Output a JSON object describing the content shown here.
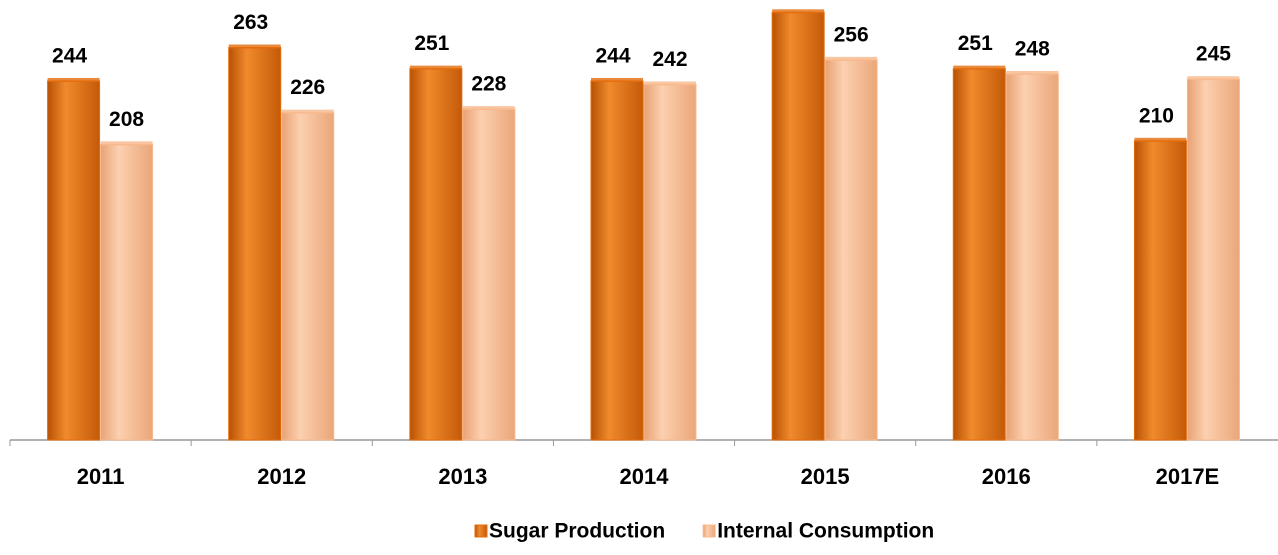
{
  "chart_data": {
    "type": "bar",
    "categories": [
      "2011",
      "2012",
      "2013",
      "2014",
      "2015",
      "2016",
      "2017E"
    ],
    "series": [
      {
        "name": "Sugar Production",
        "color": "#e46c0a",
        "values": [
          244,
          263,
          251,
          244,
          283,
          251,
          210
        ]
      },
      {
        "name": "Internal Consumption",
        "color": "#f8b88b",
        "values": [
          208,
          226,
          228,
          242,
          256,
          248,
          245
        ]
      }
    ],
    "ylim": [
      40,
      290
    ],
    "legend": "bottom"
  }
}
